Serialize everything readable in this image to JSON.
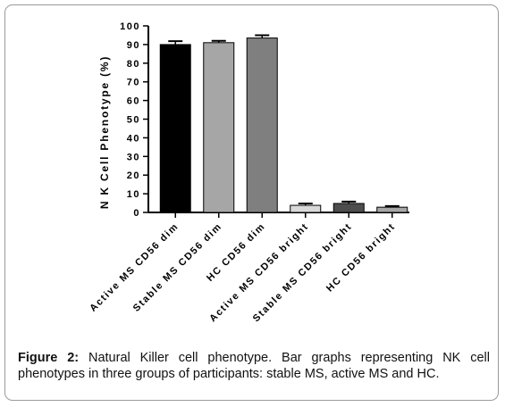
{
  "figure": {
    "caption_label": "Figure 2:",
    "caption_text": "Natural Killer cell phenotype. Bar graphs representing NK cell phenotypes in three groups of participants: stable MS, active MS and HC."
  },
  "chart_data": {
    "type": "bar",
    "ylabel": "N K  Cell  Phenotype  (%)",
    "xlabel": "",
    "ylim": [
      0,
      100
    ],
    "yticks": [
      0,
      10,
      20,
      30,
      40,
      50,
      60,
      70,
      80,
      90,
      100
    ],
    "grid": false,
    "error_bars": true,
    "categories": [
      "Active MS CD56 dim",
      "Stable MS CD56 dim",
      "HC CD56 dim",
      "Active MS CD56 bright",
      "Stable MS CD56 bright",
      "HC CD56 bright"
    ],
    "values": [
      90,
      91,
      93.5,
      3.8,
      4.8,
      2.8
    ],
    "errors": [
      1.8,
      1.0,
      1.5,
      1.0,
      1.0,
      0.6
    ],
    "colors": [
      "#000000",
      "#a6a6a6",
      "#7f7f7f",
      "#d9d9d9",
      "#4d4d4d",
      "#a6a6a6"
    ]
  }
}
